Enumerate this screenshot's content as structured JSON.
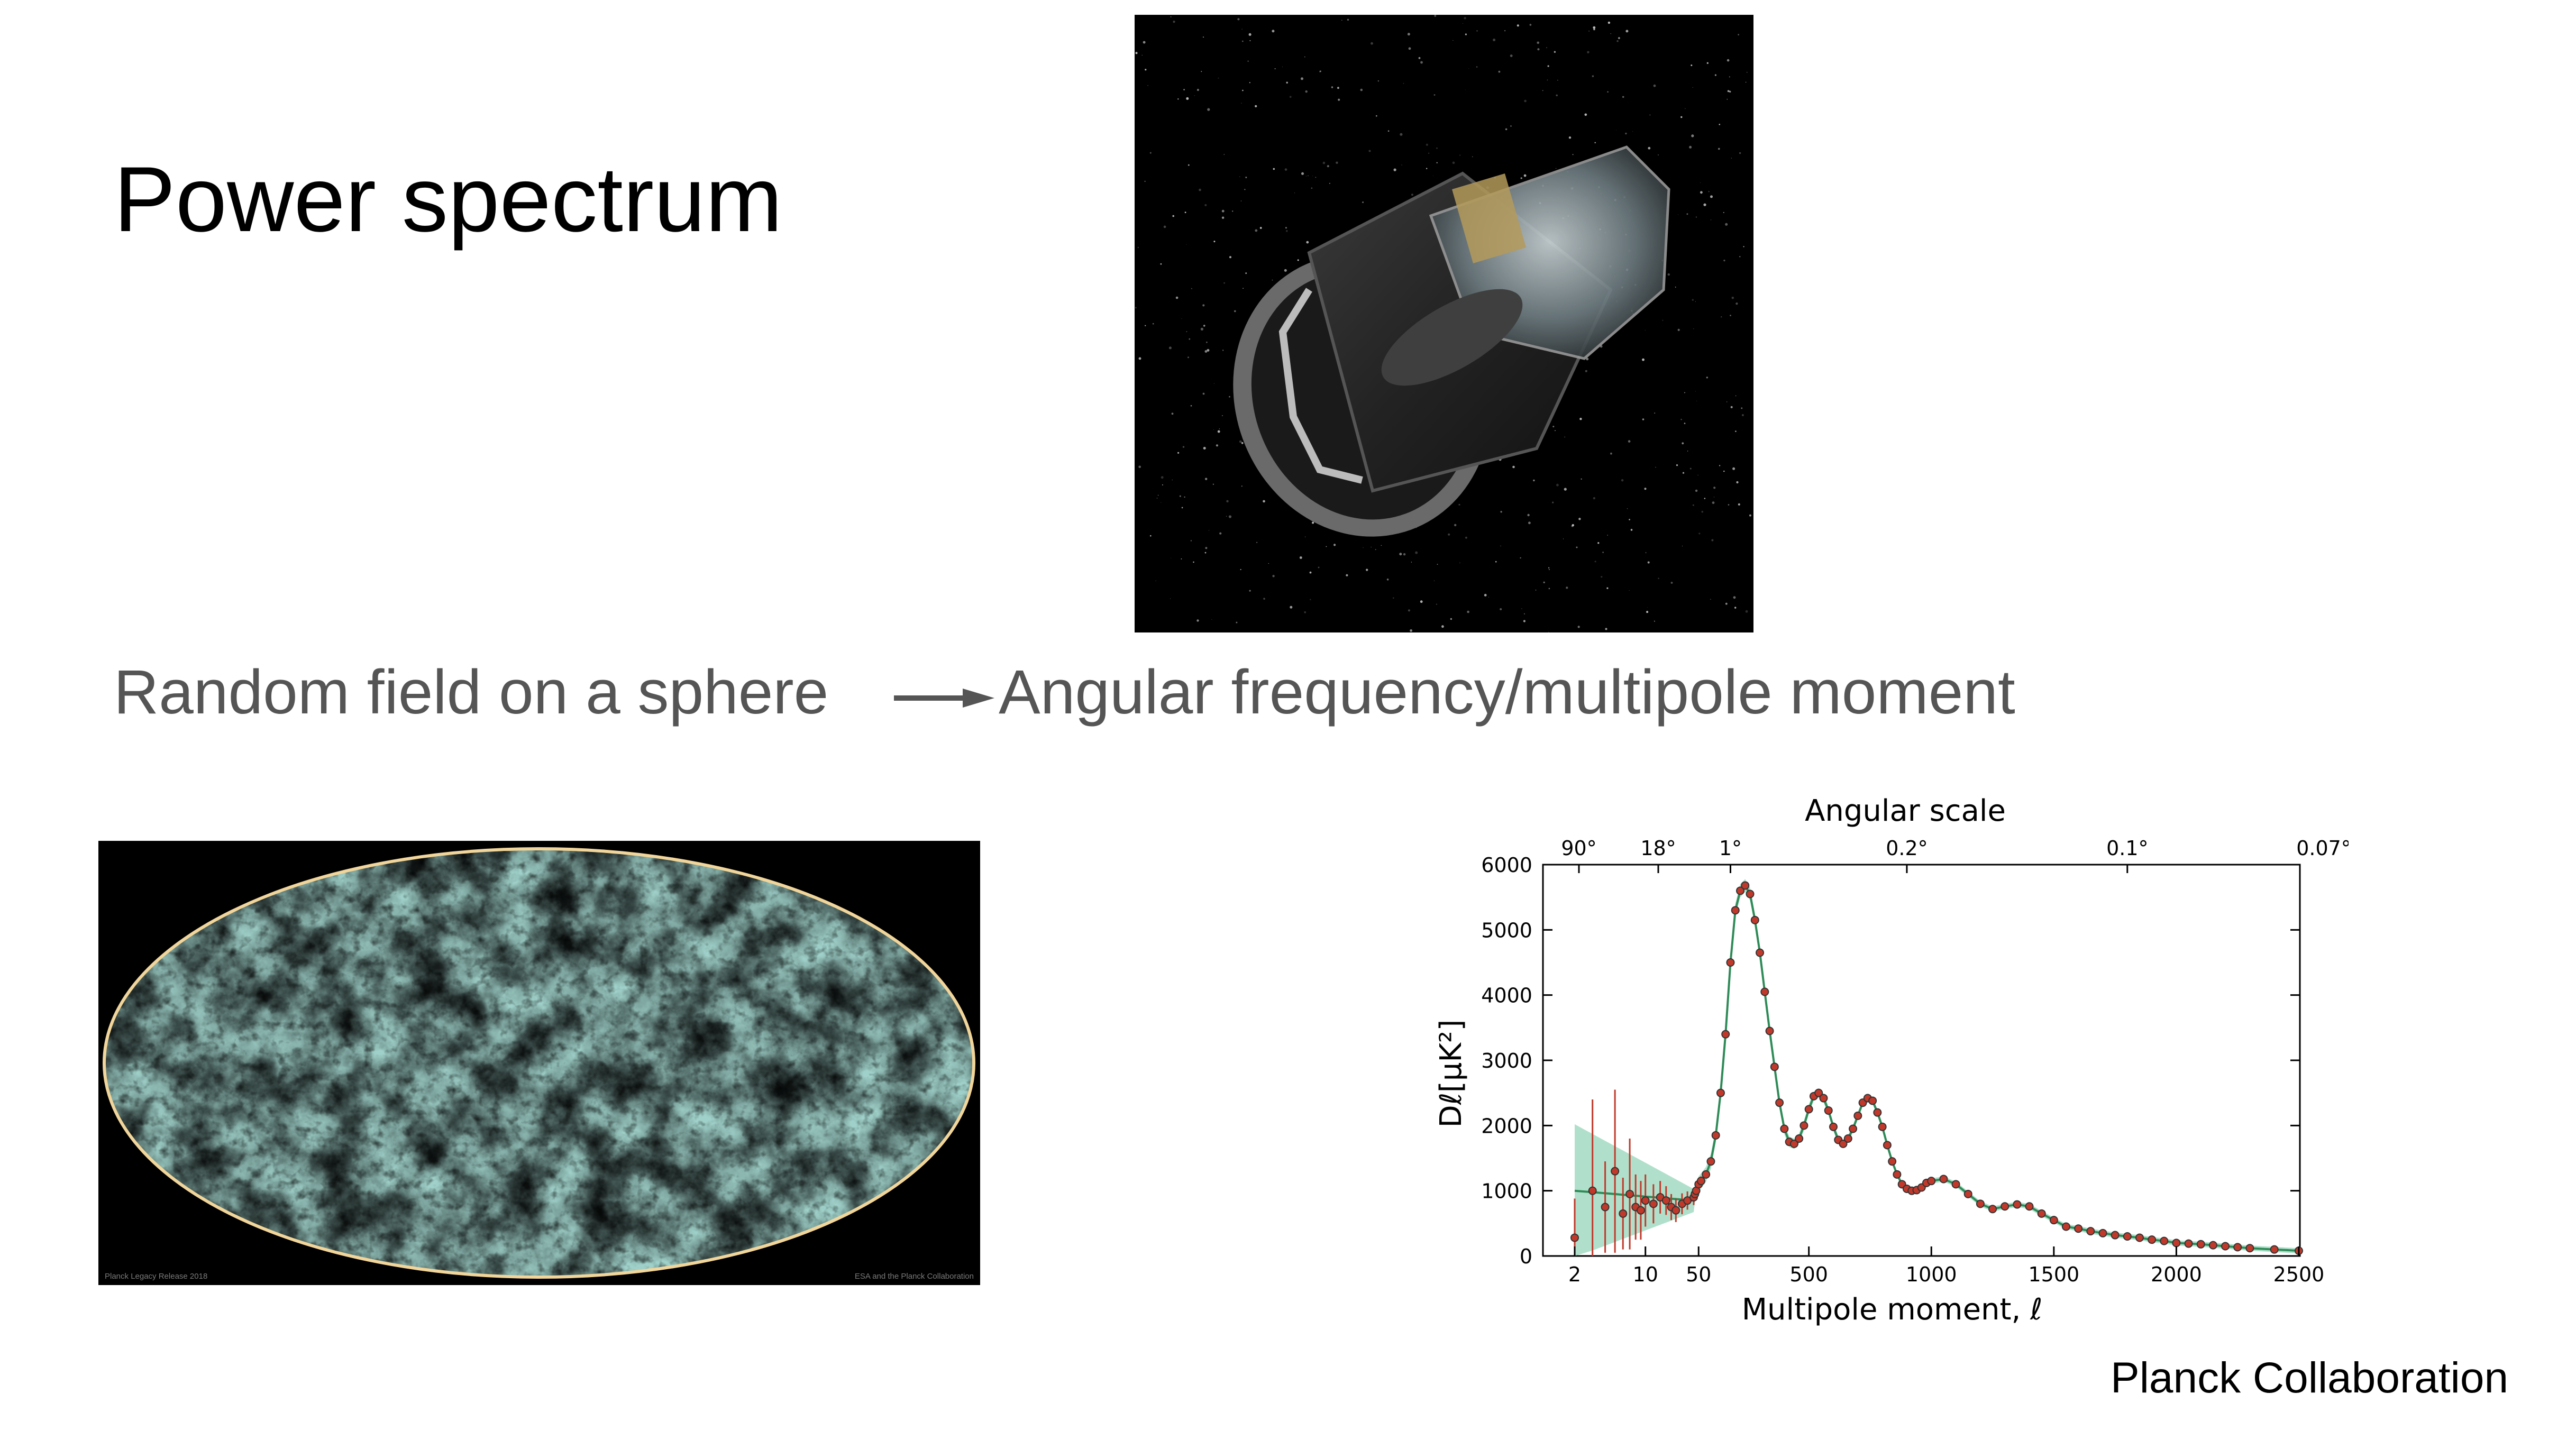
{
  "slide": {
    "title": "Power spectrum",
    "left_phrase": "Random field on a sphere",
    "right_phrase": "Angular frequency/multipole moment",
    "credit": "Planck Collaboration"
  },
  "images": {
    "satellite": {
      "icon": "planck-satellite-icon"
    },
    "cmb_map": {
      "icon": "cmb-mollweide-map-icon",
      "caption_left": "Planck Legacy Release 2018",
      "caption_right": "ESA and the Planck Collaboration"
    }
  },
  "colors": {
    "data_points": "#c0392b",
    "model_curve": "#2e8b57",
    "band": "#8fd3b5"
  },
  "chart_data": {
    "type": "scatter",
    "title": "Angular scale",
    "xlabel": "Multipole moment, ℓ",
    "ylabel": "Dℓ[μK²]",
    "ylim": [
      0,
      6000
    ],
    "yticks": [
      "0",
      "1000",
      "2000",
      "3000",
      "4000",
      "5000",
      "6000"
    ],
    "xticks_bottom": [
      "2",
      "10",
      "50",
      "500",
      "1000",
      "1500",
      "2000",
      "2500"
    ],
    "xticks_top": [
      "90°",
      "18°",
      "1°",
      "0.2°",
      "0.1°",
      "0.07°"
    ],
    "x_axis_note": "log scale for ℓ 2–30, linear above",
    "series": [
      {
        "kind": "data",
        "x": [
          2,
          3,
          4,
          5,
          6,
          7,
          8,
          9,
          10,
          12,
          14,
          16,
          18,
          20,
          23,
          26,
          30,
          35,
          40,
          50,
          60,
          80,
          100,
          120,
          140,
          160,
          180,
          200,
          220,
          240,
          260,
          280,
          300,
          320,
          340,
          360,
          380,
          400,
          420,
          440,
          460,
          480,
          500,
          520,
          540,
          560,
          580,
          600,
          620,
          640,
          660,
          680,
          700,
          720,
          740,
          760,
          780,
          800,
          820,
          840,
          860,
          880,
          900,
          920,
          940,
          960,
          980,
          1000,
          1050,
          1100,
          1150,
          1200,
          1250,
          1300,
          1350,
          1400,
          1450,
          1500,
          1550,
          1600,
          1650,
          1700,
          1750,
          1800,
          1850,
          1900,
          1950,
          2000,
          2050,
          2100,
          2150,
          2200,
          2250,
          2300,
          2400,
          2500
        ],
        "y": [
          280,
          1000,
          750,
          1300,
          650,
          950,
          750,
          700,
          850,
          800,
          900,
          850,
          750,
          700,
          800,
          850,
          900,
          950,
          1000,
          1100,
          1150,
          1250,
          1450,
          1850,
          2500,
          3400,
          4500,
          5300,
          5600,
          5680,
          5550,
          5150,
          4650,
          4050,
          3450,
          2900,
          2350,
          1950,
          1750,
          1720,
          1800,
          2000,
          2250,
          2450,
          2500,
          2420,
          2230,
          1980,
          1780,
          1720,
          1800,
          1950,
          2150,
          2350,
          2420,
          2380,
          2200,
          1980,
          1700,
          1450,
          1250,
          1100,
          1030,
          1000,
          1010,
          1050,
          1120,
          1150,
          1180,
          1100,
          950,
          800,
          720,
          760,
          790,
          760,
          650,
          550,
          450,
          420,
          380,
          350,
          320,
          300,
          280,
          250,
          230,
          200,
          190,
          180,
          165,
          150,
          135,
          120,
          100,
          80
        ],
        "err": [
          600,
          1400,
          700,
          1250,
          550,
          850,
          500,
          450,
          400,
          300,
          250,
          220,
          200,
          180,
          160,
          140,
          120,
          100,
          90,
          80,
          70,
          60,
          60,
          60,
          60,
          60,
          60,
          60,
          60,
          60,
          60,
          60,
          60,
          60,
          60,
          60,
          60,
          60,
          60,
          60,
          60,
          60,
          60,
          60,
          60,
          60,
          60,
          60,
          60,
          60,
          60,
          60,
          60,
          60,
          60,
          60,
          60,
          60,
          60,
          60,
          60,
          60,
          60,
          60,
          60,
          60,
          60,
          60,
          60,
          60,
          60,
          60,
          60,
          60,
          60,
          60,
          60,
          60,
          60,
          60,
          60,
          60,
          60,
          60,
          60,
          60,
          60,
          60,
          60,
          60,
          60,
          60,
          60,
          60,
          60,
          60
        ]
      }
    ]
  }
}
